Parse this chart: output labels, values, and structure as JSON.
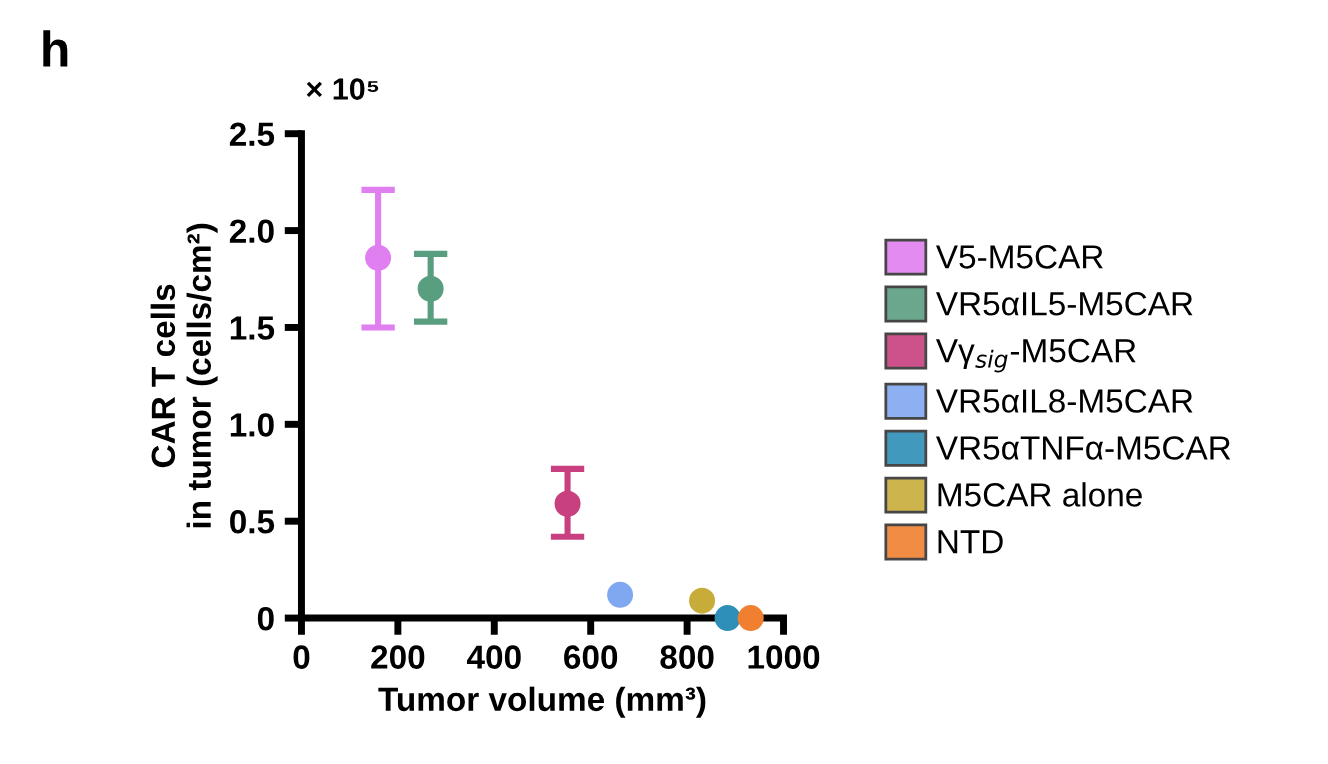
{
  "chart_data": {
    "type": "scatter",
    "xlabel": "Tumor volume (mm³)",
    "ylabel": "CAR T cells\nin tumor (cells/cm²)",
    "annotations": [
      "h",
      "× 10⁵"
    ],
    "xlim": [
      0,
      1000
    ],
    "xticks": [
      0,
      200,
      400,
      600,
      800,
      1000
    ],
    "ylim": [
      0,
      2.5
    ],
    "yticks": [
      {
        "value": 0,
        "label": "0"
      },
      {
        "value": 0.5,
        "label": "0.5"
      },
      {
        "value": 1,
        "label": "1.0"
      },
      {
        "value": 1.5,
        "label": "1.5"
      },
      {
        "value": 2,
        "label": "2.0"
      },
      {
        "value": 2.5,
        "label": "2.5"
      }
    ],
    "grid": false,
    "legend": "right",
    "marker": "circle",
    "series": [
      {
        "name": "V5-M5CAR",
        "color": "#e07ff0",
        "x": [
          159
        ],
        "values": [
          1.86
        ],
        "errors": [
          [
            1.5,
            2.21
          ]
        ]
      },
      {
        "name": "VR5αIL5-M5CAR",
        "color": "#5a9e80",
        "x": [
          268
        ],
        "values": [
          1.7
        ],
        "errors": [
          [
            1.53,
            1.88
          ]
        ]
      },
      {
        "name": "Vγ$_{sig}$-M5CAR",
        "color": "#c8407f",
        "x": [
          552
        ],
        "values": [
          0.59
        ],
        "errors": [
          [
            0.42,
            0.77
          ]
        ]
      },
      {
        "name": "VR5αIL8-M5CAR",
        "color": "#80a8f0",
        "x": [
          661
        ],
        "values": [
          0.12
        ]
      },
      {
        "name": "VR5αTNFα-M5CAR",
        "color": "#2e8fb8",
        "x": [
          884
        ],
        "values": [
          0
        ]
      },
      {
        "name": "M5CAR alone",
        "color": "#c8ac3a",
        "x": [
          831
        ],
        "values": [
          0.09
        ]
      },
      {
        "name": "NTD",
        "color": "#f08030",
        "x": [
          932
        ],
        "values": [
          0
        ]
      }
    ]
  }
}
